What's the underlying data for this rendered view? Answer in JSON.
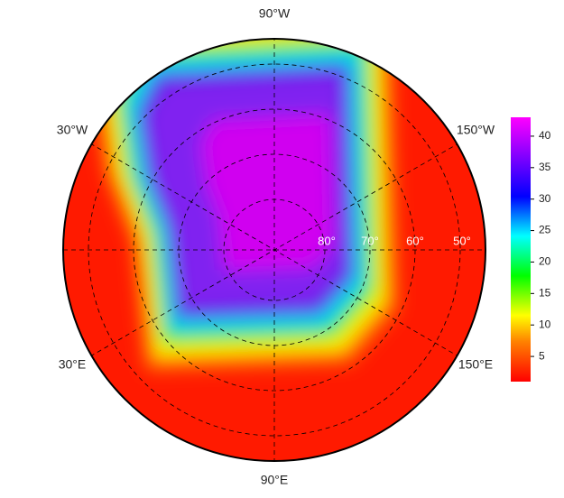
{
  "map": {
    "longitude_labels": {
      "top": "90°W",
      "upper_left": "30°W",
      "upper_right": "150°W",
      "lower_left": "30°E",
      "lower_right": "150°E",
      "bottom": "90°E"
    },
    "latitude_labels": [
      "80°",
      "70°",
      "60°",
      "50°"
    ],
    "colorbar": {
      "range": [
        1,
        43
      ],
      "ticks": [
        5,
        10,
        15,
        20,
        25,
        30,
        35,
        40
      ]
    }
  }
}
